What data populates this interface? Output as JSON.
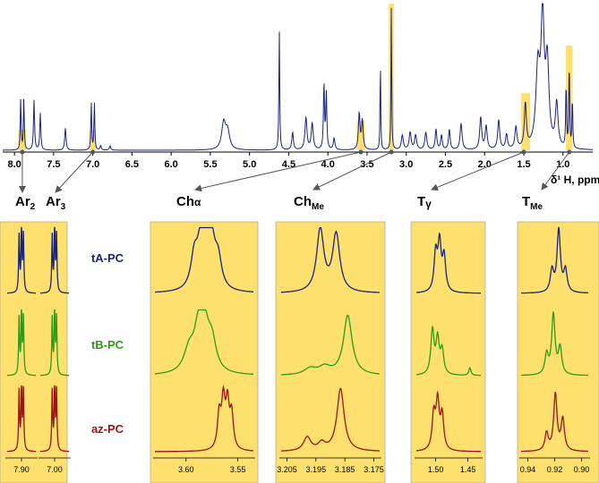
{
  "chart_data": {
    "type": "line",
    "title": "",
    "spectrum": {
      "xlabel": "δ¹ H, ppm",
      "xlim": [
        8.15,
        0.62
      ],
      "ticks": [
        "8.0",
        "7.5",
        "7.0",
        "6.5",
        "6.0",
        "5.5",
        "5.0",
        "4.5",
        "4.0",
        "3.5",
        "3.0",
        "2.5",
        "2.0",
        "1.5",
        "1.0"
      ],
      "tick_values": [
        8.0,
        7.5,
        7.0,
        6.5,
        6.0,
        5.5,
        5.0,
        4.5,
        4.0,
        3.5,
        3.0,
        2.5,
        2.0,
        1.5,
        1.0
      ],
      "highlight_regions": [
        [
          7.86,
          7.94
        ],
        [
          6.97,
          7.03
        ],
        [
          3.54,
          3.62
        ],
        [
          3.17,
          3.21
        ],
        [
          1.43,
          1.52
        ],
        [
          0.89,
          0.95
        ]
      ],
      "peaks": [
        {
          "ppm": 7.92,
          "h": 0.36,
          "w": 0.006
        },
        {
          "ppm": 7.88,
          "h": 0.36,
          "w": 0.006
        },
        {
          "ppm": 7.75,
          "h": 0.34,
          "w": 0.008
        },
        {
          "ppm": 7.67,
          "h": 0.25,
          "w": 0.008
        },
        {
          "ppm": 7.35,
          "h": 0.15,
          "w": 0.01
        },
        {
          "ppm": 7.02,
          "h": 0.33,
          "w": 0.006
        },
        {
          "ppm": 6.98,
          "h": 0.33,
          "w": 0.006
        },
        {
          "ppm": 6.9,
          "h": 0.03,
          "w": 0.01
        },
        {
          "ppm": 6.78,
          "h": 0.03,
          "w": 0.01
        },
        {
          "ppm": 5.33,
          "h": 0.18,
          "w": 0.03
        },
        {
          "ppm": 5.28,
          "h": 0.12,
          "w": 0.03
        },
        {
          "ppm": 4.62,
          "h": 0.82,
          "w": 0.006
        },
        {
          "ppm": 4.45,
          "h": 0.12,
          "w": 0.012
        },
        {
          "ppm": 4.28,
          "h": 0.22,
          "w": 0.015
        },
        {
          "ppm": 4.2,
          "h": 0.18,
          "w": 0.015
        },
        {
          "ppm": 4.05,
          "h": 0.45,
          "w": 0.008
        },
        {
          "ppm": 4.02,
          "h": 0.38,
          "w": 0.008
        },
        {
          "ppm": 3.92,
          "h": 0.08,
          "w": 0.012
        },
        {
          "ppm": 3.6,
          "h": 0.25,
          "w": 0.012
        },
        {
          "ppm": 3.56,
          "h": 0.2,
          "w": 0.012
        },
        {
          "ppm": 3.33,
          "h": 0.62,
          "w": 0.005
        },
        {
          "ppm": 3.19,
          "h": 1.0,
          "w": 0.005
        },
        {
          "ppm": 3.05,
          "h": 0.1,
          "w": 0.015
        },
        {
          "ppm": 2.95,
          "h": 0.12,
          "w": 0.015
        },
        {
          "ppm": 2.88,
          "h": 0.1,
          "w": 0.015
        },
        {
          "ppm": 2.75,
          "h": 0.12,
          "w": 0.015
        },
        {
          "ppm": 2.62,
          "h": 0.14,
          "w": 0.012
        },
        {
          "ppm": 2.55,
          "h": 0.1,
          "w": 0.012
        },
        {
          "ppm": 2.45,
          "h": 0.14,
          "w": 0.012
        },
        {
          "ppm": 2.3,
          "h": 0.18,
          "w": 0.015
        },
        {
          "ppm": 2.05,
          "h": 0.22,
          "w": 0.015
        },
        {
          "ppm": 1.98,
          "h": 0.16,
          "w": 0.015
        },
        {
          "ppm": 1.82,
          "h": 0.2,
          "w": 0.015
        },
        {
          "ppm": 1.72,
          "h": 0.1,
          "w": 0.015
        },
        {
          "ppm": 1.6,
          "h": 0.15,
          "w": 0.015
        },
        {
          "ppm": 1.48,
          "h": 0.3,
          "w": 0.015
        },
        {
          "ppm": 1.32,
          "h": 0.52,
          "w": 0.03
        },
        {
          "ppm": 1.26,
          "h": 0.85,
          "w": 0.025
        },
        {
          "ppm": 1.2,
          "h": 0.55,
          "w": 0.025
        },
        {
          "ppm": 1.08,
          "h": 0.3,
          "w": 0.02
        },
        {
          "ppm": 0.96,
          "h": 0.45,
          "w": 0.006
        },
        {
          "ppm": 0.92,
          "h": 0.6,
          "w": 0.006
        },
        {
          "ppm": 0.88,
          "h": 0.35,
          "w": 0.006
        }
      ]
    },
    "panel_labels": {
      "ar2": {
        "main": "Ar",
        "sub": "2"
      },
      "ar3": {
        "main": "Ar",
        "sub": "3"
      },
      "cha": {
        "main": "Ch",
        "sub": "α"
      },
      "chme": {
        "main": "Ch",
        "sub": "Me"
      },
      "tg": {
        "main": "T",
        "sub": "γ"
      },
      "tme": {
        "main": "T",
        "sub": "Me"
      }
    },
    "series": [
      {
        "name": "tA-PC",
        "color": "#1a237e"
      },
      {
        "name": "tB-PC",
        "color": "#2e9b16"
      },
      {
        "name": "az-PC",
        "color": "#9c1410"
      }
    ],
    "panels": [
      {
        "id": "ar2",
        "ticks": [
          "7.90"
        ],
        "tick_values": [
          7.9
        ],
        "xlim": [
          7.93,
          7.87
        ],
        "traces": [
          [
            {
              "ppm": 7.905,
              "h": 0.9,
              "w": 0.0012
            },
            {
              "ppm": 7.9,
              "h": 1.0,
              "w": 0.0012
            },
            {
              "ppm": 7.896,
              "h": 0.9,
              "w": 0.0012
            }
          ],
          [
            {
              "ppm": 7.905,
              "h": 0.9,
              "w": 0.0012
            },
            {
              "ppm": 7.9,
              "h": 1.0,
              "w": 0.0012
            },
            {
              "ppm": 7.896,
              "h": 0.9,
              "w": 0.0012
            }
          ],
          [
            {
              "ppm": 7.905,
              "h": 0.95,
              "w": 0.0012
            },
            {
              "ppm": 7.9,
              "h": 1.0,
              "w": 0.0012
            },
            {
              "ppm": 7.896,
              "h": 0.95,
              "w": 0.0012
            }
          ]
        ]
      },
      {
        "id": "ar3",
        "ticks": [
          "7.00"
        ],
        "tick_values": [
          7.0
        ],
        "xlim": [
          7.03,
          6.97
        ],
        "traces": [
          [
            {
              "ppm": 7.005,
              "h": 0.9,
              "w": 0.0012
            },
            {
              "ppm": 7.0,
              "h": 1.0,
              "w": 0.0012
            },
            {
              "ppm": 6.996,
              "h": 0.9,
              "w": 0.0012
            }
          ],
          [
            {
              "ppm": 7.005,
              "h": 0.9,
              "w": 0.0012
            },
            {
              "ppm": 7.0,
              "h": 1.0,
              "w": 0.0012
            },
            {
              "ppm": 6.996,
              "h": 0.9,
              "w": 0.0012
            }
          ],
          [
            {
              "ppm": 7.005,
              "h": 0.95,
              "w": 0.0012
            },
            {
              "ppm": 7.0,
              "h": 1.0,
              "w": 0.0012
            },
            {
              "ppm": 6.996,
              "h": 0.95,
              "w": 0.0012
            }
          ]
        ]
      },
      {
        "id": "cha",
        "ticks": [
          "3.60",
          "3.55"
        ],
        "tick_values": [
          3.6,
          3.55
        ],
        "xlim": [
          3.63,
          3.535
        ],
        "traces": [
          [
            {
              "ppm": 3.592,
              "h": 0.5,
              "w": 0.004
            },
            {
              "ppm": 3.586,
              "h": 0.62,
              "w": 0.004
            },
            {
              "ppm": 3.58,
              "h": 0.75,
              "w": 0.004
            },
            {
              "ppm": 3.575,
              "h": 0.58,
              "w": 0.004
            },
            {
              "ppm": 3.569,
              "h": 0.45,
              "w": 0.004
            }
          ],
          [
            {
              "ppm": 3.597,
              "h": 0.35,
              "w": 0.006
            },
            {
              "ppm": 3.588,
              "h": 0.62,
              "w": 0.005
            },
            {
              "ppm": 3.582,
              "h": 0.65,
              "w": 0.005
            },
            {
              "ppm": 3.575,
              "h": 0.45,
              "w": 0.005
            }
          ],
          [
            {
              "ppm": 3.568,
              "h": 0.55,
              "w": 0.002
            },
            {
              "ppm": 3.564,
              "h": 0.75,
              "w": 0.002
            },
            {
              "ppm": 3.56,
              "h": 0.7,
              "w": 0.002
            },
            {
              "ppm": 3.556,
              "h": 0.55,
              "w": 0.002
            }
          ]
        ]
      },
      {
        "id": "chme",
        "ticks": [
          "3.205",
          "3.195",
          "3.185",
          "3.175"
        ],
        "tick_values": [
          3.205,
          3.195,
          3.185,
          3.175
        ],
        "xlim": [
          3.207,
          3.173
        ],
        "traces": [
          [
            {
              "ppm": 3.1935,
              "h": 1.0,
              "w": 0.0015
            },
            {
              "ppm": 3.188,
              "h": 0.92,
              "w": 0.0015
            }
          ],
          [
            {
              "ppm": 3.197,
              "h": 0.1,
              "w": 0.0025
            },
            {
              "ppm": 3.192,
              "h": 0.12,
              "w": 0.0025
            },
            {
              "ppm": 3.184,
              "h": 0.95,
              "w": 0.0018
            }
          ],
          [
            {
              "ppm": 3.198,
              "h": 0.22,
              "w": 0.0015
            },
            {
              "ppm": 3.193,
              "h": 0.12,
              "w": 0.0015
            },
            {
              "ppm": 3.1865,
              "h": 1.0,
              "w": 0.0015
            }
          ]
        ]
      },
      {
        "id": "tg",
        "ticks": [
          "1.50",
          "1.45"
        ],
        "tick_values": [
          1.5,
          1.45
        ],
        "xlim": [
          1.53,
          1.43
        ],
        "traces": [
          [
            {
              "ppm": 1.5,
              "h": 0.6,
              "w": 0.003
            },
            {
              "ppm": 1.494,
              "h": 0.75,
              "w": 0.003
            },
            {
              "ppm": 1.487,
              "h": 0.55,
              "w": 0.003
            }
          ],
          [
            {
              "ppm": 1.505,
              "h": 0.7,
              "w": 0.003
            },
            {
              "ppm": 1.497,
              "h": 0.55,
              "w": 0.003
            },
            {
              "ppm": 1.49,
              "h": 0.38,
              "w": 0.003
            },
            {
              "ppm": 1.447,
              "h": 0.12,
              "w": 0.002
            }
          ],
          [
            {
              "ppm": 1.503,
              "h": 0.55,
              "w": 0.003
            },
            {
              "ppm": 1.497,
              "h": 0.75,
              "w": 0.003
            },
            {
              "ppm": 1.49,
              "h": 0.55,
              "w": 0.003
            }
          ]
        ]
      },
      {
        "id": "tme",
        "ticks": [
          "0.94",
          "0.92",
          "0.90"
        ],
        "tick_values": [
          0.94,
          0.92,
          0.9
        ],
        "xlim": [
          0.945,
          0.895
        ],
        "traces": [
          [
            {
              "ppm": 0.922,
              "h": 0.35,
              "w": 0.0015
            },
            {
              "ppm": 0.917,
              "h": 1.0,
              "w": 0.0015
            },
            {
              "ppm": 0.912,
              "h": 0.35,
              "w": 0.0015
            }
          ],
          [
            {
              "ppm": 0.926,
              "h": 0.32,
              "w": 0.0015
            },
            {
              "ppm": 0.921,
              "h": 0.95,
              "w": 0.0015
            },
            {
              "ppm": 0.916,
              "h": 0.42,
              "w": 0.0015
            }
          ],
          [
            {
              "ppm": 0.926,
              "h": 0.28,
              "w": 0.0015
            },
            {
              "ppm": 0.9195,
              "h": 0.9,
              "w": 0.0015
            },
            {
              "ppm": 0.914,
              "h": 0.5,
              "w": 0.0015
            }
          ]
        ]
      }
    ]
  },
  "colors": {
    "highlight": "#fde06e",
    "spectrum": "#1a237e",
    "arrow": "#555555"
  }
}
